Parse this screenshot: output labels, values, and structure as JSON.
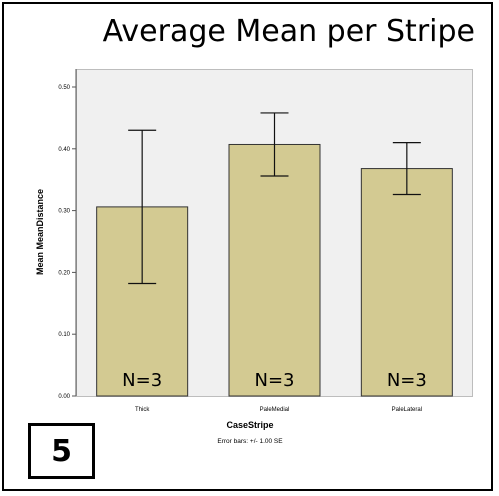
{
  "panel_label": "5",
  "chart_data": {
    "type": "bar",
    "title": "Average Mean per Stripe",
    "xlabel": "CaseStripe",
    "ylabel": "Mean MeanDistance",
    "categories": [
      "Thick",
      "PaleMedial",
      "PaleLateral"
    ],
    "values": [
      0.306,
      0.407,
      0.368
    ],
    "error_upper": [
      0.43,
      0.458,
      0.41
    ],
    "error_lower": [
      0.182,
      0.356,
      0.326
    ],
    "bar_labels": [
      "N=3",
      "N=3",
      "N=3"
    ],
    "ylim": [
      0,
      0.5
    ],
    "yticks": [
      "0.00",
      "0.10",
      "0.20",
      "0.30",
      "0.40",
      "0.50"
    ],
    "note": "Error bars: +/- 1.00 SE",
    "bar_color": "#d3ca92",
    "grid": false
  }
}
